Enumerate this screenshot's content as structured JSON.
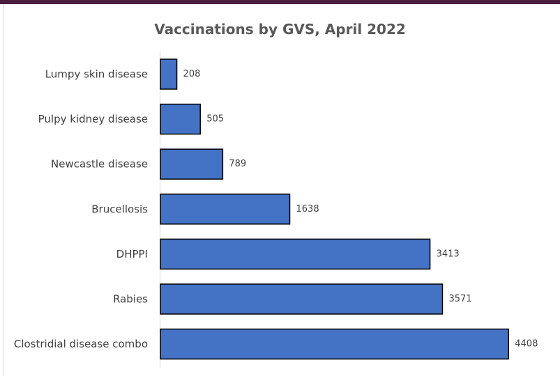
{
  "chart_data": {
    "type": "bar",
    "orientation": "horizontal",
    "title": "Vaccinations by GVS, April 2022",
    "xlabel": "",
    "ylabel": "",
    "categories": [
      "Lumpy skin disease",
      "Pulpy kidney disease",
      "Newcastle disease",
      "Brucellosis",
      "DHPPI",
      "Rabies",
      "Clostridial disease combo"
    ],
    "values": [
      208,
      505,
      789,
      1638,
      3413,
      3571,
      4408
    ],
    "xlim": [
      0,
      4900
    ],
    "data_labels": true,
    "grid": false,
    "bar_color": "#4472c4",
    "bar_border_color": "#000000"
  }
}
